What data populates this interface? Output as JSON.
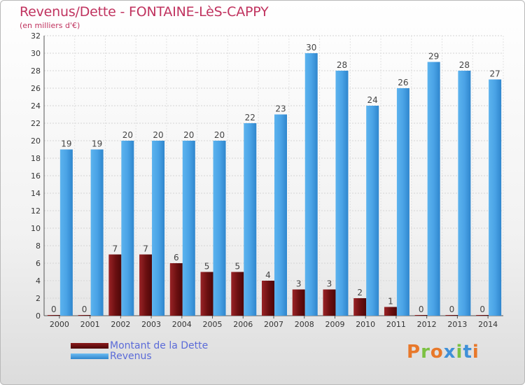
{
  "header": {
    "title": "Revenus/Dette - FONTAINE-LèS-CAPPY",
    "subtitle": "(en milliers d'€)"
  },
  "legend": {
    "items": [
      {
        "label": "Montant de la Dette",
        "color": "#6a0f10"
      },
      {
        "label": "Revenus",
        "color": "#4aa3e6"
      }
    ]
  },
  "logo": {
    "text": "Proxiti",
    "colors": [
      "#e8782a",
      "#7cc142",
      "#e8782a",
      "#3f90d8",
      "#7cc142",
      "#3f90d8",
      "#e8782a"
    ]
  },
  "chart_data": {
    "type": "bar",
    "title": "Revenus/Dette - FONTAINE-LèS-CAPPY",
    "subtitle": "(en milliers d'€)",
    "categories": [
      "2000",
      "2001",
      "2002",
      "2003",
      "2004",
      "2005",
      "2006",
      "2007",
      "2008",
      "2009",
      "2010",
      "2011",
      "2012",
      "2013",
      "2014"
    ],
    "series": [
      {
        "name": "Montant de la Dette",
        "color": "#6a0f10",
        "values": [
          0,
          0,
          7,
          7,
          6,
          5,
          5,
          4,
          3,
          3,
          2,
          1,
          0,
          0,
          0
        ]
      },
      {
        "name": "Revenus",
        "color": "#4aa3e6",
        "values": [
          19,
          19,
          20,
          20,
          20,
          20,
          22,
          23,
          30,
          28,
          24,
          26,
          29,
          28,
          27
        ]
      }
    ],
    "ylim": [
      0,
      32
    ],
    "yticks": [
      0,
      2,
      4,
      6,
      8,
      10,
      12,
      14,
      16,
      18,
      20,
      22,
      24,
      26,
      28,
      30,
      32
    ],
    "grid": true,
    "legend_position": "bottom-left"
  }
}
